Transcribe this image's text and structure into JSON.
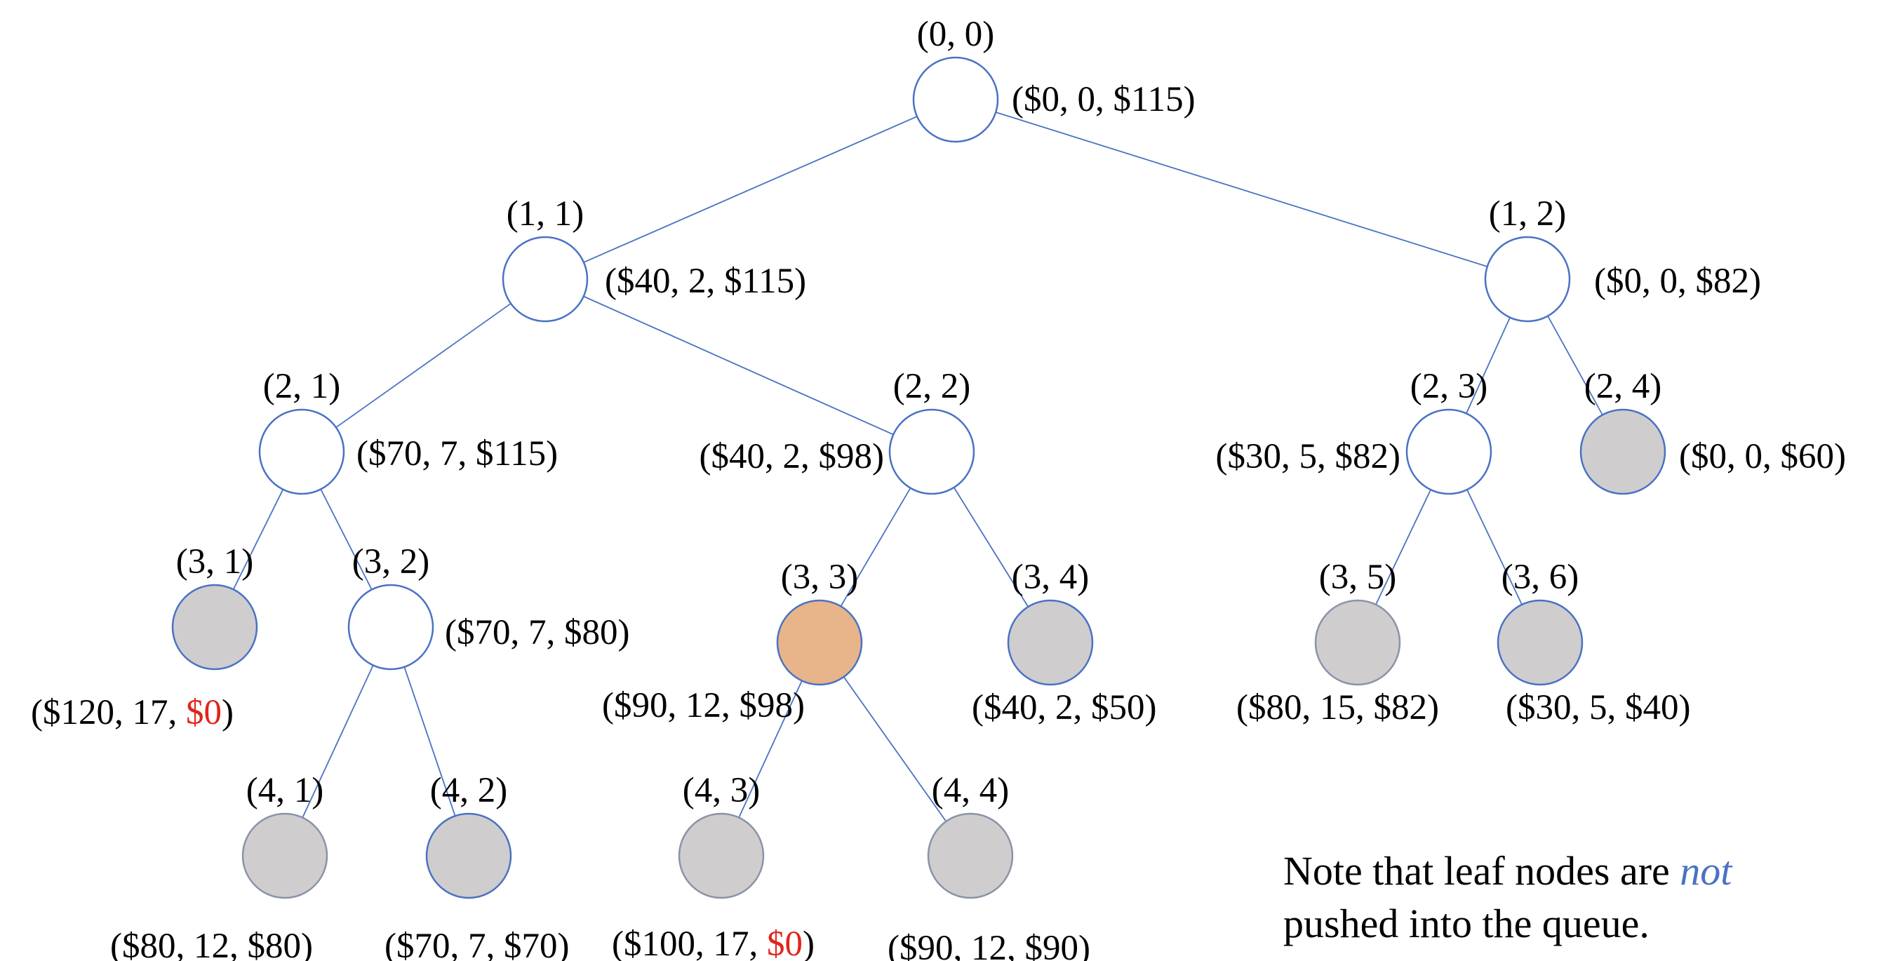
{
  "colors": {
    "edge": "#4a72c4",
    "node_border": "#4a72c4",
    "node_border_leaf": "#8a93a8",
    "node_fill_open": "#ffffff",
    "node_fill_pruned": "#cfcdce",
    "node_fill_current": "#e8b48a",
    "highlight_text": "#e0251b",
    "emphasis_text": "#4a72c4"
  },
  "tree": {
    "nodes": [
      {
        "id": "0-0",
        "label": "(0, 0)",
        "state": "open",
        "value": {
          "pre": "($0, 0, $115)",
          "hl": "",
          "post": ""
        }
      },
      {
        "id": "1-1",
        "label": "(1, 1)",
        "state": "open",
        "value": {
          "pre": "($40, 2, $115)",
          "hl": "",
          "post": ""
        }
      },
      {
        "id": "1-2",
        "label": "(1, 2)",
        "state": "open",
        "value": {
          "pre": "($0, 0, $82)",
          "hl": "",
          "post": ""
        }
      },
      {
        "id": "2-1",
        "label": "(2, 1)",
        "state": "open",
        "value": {
          "pre": "($70, 7, $115)",
          "hl": "",
          "post": ""
        }
      },
      {
        "id": "2-2",
        "label": "(2, 2)",
        "state": "open",
        "value": {
          "pre": "($40, 2, $98)",
          "hl": "",
          "post": ""
        }
      },
      {
        "id": "2-3",
        "label": "(2, 3)",
        "state": "open",
        "value": {
          "pre": "($30, 5, $82)",
          "hl": "",
          "post": ""
        }
      },
      {
        "id": "2-4",
        "label": "(2, 4)",
        "state": "pruned",
        "value": {
          "pre": "($0, 0, $60)",
          "hl": "",
          "post": ""
        }
      },
      {
        "id": "3-1",
        "label": "(3, 1)",
        "state": "pruned",
        "value": {
          "pre": "($120, 17, ",
          "hl": "$0",
          "post": ")"
        }
      },
      {
        "id": "3-2",
        "label": "(3, 2)",
        "state": "open",
        "value": {
          "pre": "($70, 7, $80)",
          "hl": "",
          "post": ""
        }
      },
      {
        "id": "3-3",
        "label": "(3, 3)",
        "state": "current",
        "value": {
          "pre": "($90, 12, $98)",
          "hl": "",
          "post": ""
        }
      },
      {
        "id": "3-4",
        "label": "(3, 4)",
        "state": "pruned",
        "value": {
          "pre": "($40, 2, $50)",
          "hl": "",
          "post": ""
        }
      },
      {
        "id": "3-5",
        "label": "(3, 5)",
        "state": "leaf",
        "value": {
          "pre": "($80, 15, $82)",
          "hl": "",
          "post": ""
        }
      },
      {
        "id": "3-6",
        "label": "(3, 6)",
        "state": "pruned",
        "value": {
          "pre": "($30, 5, $40)",
          "hl": "",
          "post": ""
        }
      },
      {
        "id": "4-1",
        "label": "(4, 1)",
        "state": "leaf",
        "value": {
          "pre": "($80, 12, $80)",
          "hl": "",
          "post": ""
        }
      },
      {
        "id": "4-2",
        "label": "(4, 2)",
        "state": "pruned",
        "value": {
          "pre": "($70, 7, $70)",
          "hl": "",
          "post": ""
        }
      },
      {
        "id": "4-3",
        "label": "(4, 3)",
        "state": "leaf",
        "value": {
          "pre": "($100, 17, ",
          "hl": "$0",
          "post": ")"
        }
      },
      {
        "id": "4-4",
        "label": "(4, 4)",
        "state": "leaf",
        "value": {
          "pre": "($90, 12, $90)",
          "hl": "",
          "post": ""
        }
      }
    ],
    "edges": [
      [
        "0-0",
        "1-1"
      ],
      [
        "0-0",
        "1-2"
      ],
      [
        "1-1",
        "2-1"
      ],
      [
        "1-1",
        "2-2"
      ],
      [
        "1-2",
        "2-3"
      ],
      [
        "1-2",
        "2-4"
      ],
      [
        "2-1",
        "3-1"
      ],
      [
        "2-1",
        "3-2"
      ],
      [
        "2-2",
        "3-3"
      ],
      [
        "2-2",
        "3-4"
      ],
      [
        "2-3",
        "3-5"
      ],
      [
        "2-3",
        "3-6"
      ],
      [
        "3-2",
        "4-1"
      ],
      [
        "3-2",
        "4-2"
      ],
      [
        "3-3",
        "4-3"
      ],
      [
        "3-3",
        "4-4"
      ]
    ]
  },
  "note": {
    "line1_pre": "Note that leaf nodes are ",
    "line1_em": "not",
    "line2": "pushed into the queue."
  }
}
